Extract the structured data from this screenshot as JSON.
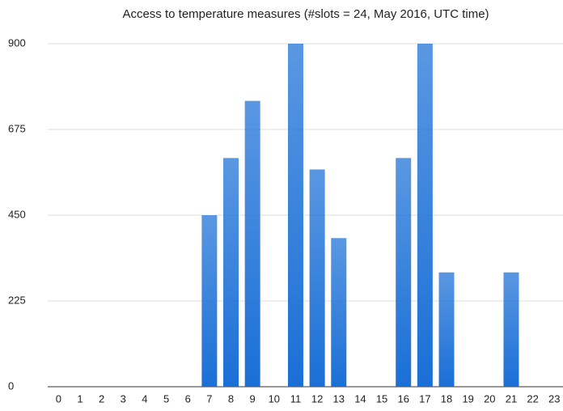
{
  "chart_data": {
    "type": "bar",
    "title": "Access to temperature measures (#slots = 24, May 2016, UTC time)",
    "categories": [
      "0",
      "1",
      "2",
      "3",
      "4",
      "5",
      "6",
      "7",
      "8",
      "9",
      "10",
      "11",
      "12",
      "13",
      "14",
      "15",
      "16",
      "17",
      "18",
      "19",
      "20",
      "21",
      "22",
      "23"
    ],
    "values": [
      0,
      0,
      0,
      0,
      0,
      0,
      0,
      450,
      600,
      750,
      0,
      900,
      570,
      390,
      0,
      0,
      600,
      900,
      300,
      0,
      0,
      300,
      0,
      0
    ],
    "color": "#1a6fd6",
    "ylim": [
      0,
      900
    ],
    "yticks": [
      0,
      225,
      450,
      675,
      900
    ],
    "grid": true
  }
}
